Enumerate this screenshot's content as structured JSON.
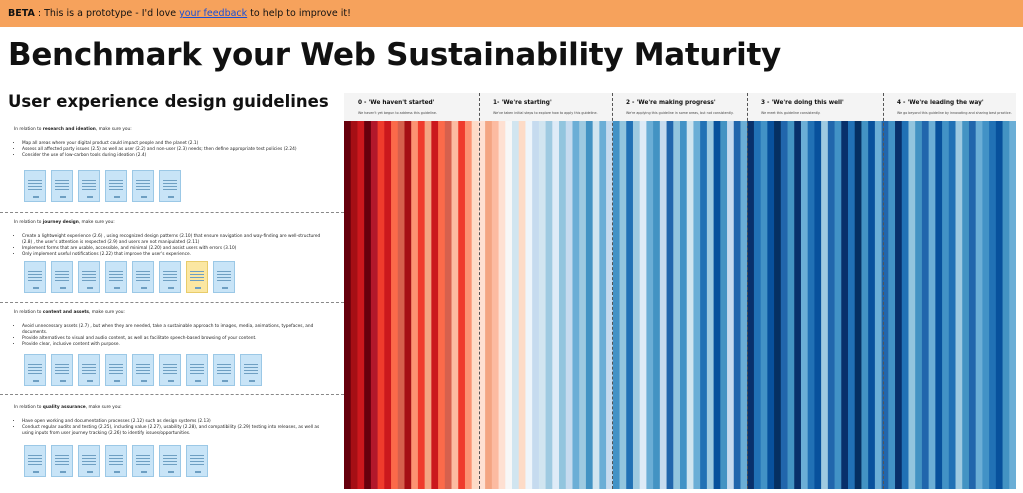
{
  "banner": {
    "beta_label": "BETA",
    "text_before": " : This is a prototype - I'd love ",
    "link_text": "your feedback",
    "text_after": " to help to improve it!"
  },
  "page_title": "Benchmark your Web Sustainability Maturity",
  "section_title": "User experience design guidelines",
  "levels": [
    {
      "label": "0 - 'We haven't started'",
      "desc": "We haven't yet begun to address this guideline."
    },
    {
      "label": "1- 'We're starting'",
      "desc": "We've taken initial steps to explore how to apply this guideline."
    },
    {
      "label": "2 - 'We're making progress'",
      "desc": "We're applying this guideline in some areas, but not consistently."
    },
    {
      "label": "3 - 'We're doing this well'",
      "desc": "We meet this guideline consistently."
    },
    {
      "label": "4 - 'We're leading the way'",
      "desc": "We go beyond this guideline by innovating and sharing best practice."
    }
  ],
  "sections": [
    {
      "intro_before": "In relation to ",
      "intro_bold": "research and ideation",
      "intro_after": ", make sure you:",
      "bullets": [
        "Map all areas where your digital product could impact people and the planet (2.1)",
        "Assess all affected party issues (2.5) as well as user (2.2) and non-user (2.3) needs; then define appropriate test policies (2.24)",
        "Consider the use of low-carbon tools during ideation (2.4)"
      ],
      "card_count": 6,
      "yellow_index": -1
    },
    {
      "intro_before": "In relation to ",
      "intro_bold": "journey design",
      "intro_after": ", make sure you:",
      "bullets": [
        "Create a lightweight experience (2.6) , using recognized design patterns (2.10) that ensure navigation and way-finding are well-structured (2.8) , the user's attention is respected (2.9) and users are not manipulated (2.11)",
        "Implement forms that are usable, accessible, and minimal (2.20) and assist users with errors (3.10)",
        "Only implement useful notifications (2.22) that improve the user's experience."
      ],
      "card_count": 8,
      "yellow_index": 6
    },
    {
      "intro_before": "In relation to ",
      "intro_bold": "content and assets",
      "intro_after": ", make sure you:",
      "bullets": [
        "Avoid unnecessary assets (2.7) , but when they are needed, take a sustainable approach to images, media, animations, typefaces, and documents.",
        "Provide alternatives to visual and audio content, as well as facilitate speech-based browsing of your content.",
        "Provide clear, inclusive content with purpose."
      ],
      "card_count": 9,
      "yellow_index": -1
    },
    {
      "intro_before": "In relation to ",
      "intro_bold": "quality assurance",
      "intro_after": ", make sure you:",
      "bullets": [
        "Have open working and documentation processes (2.12) such as design systems (2.13)",
        "Conduct regular audits and testing (2.25), including value (2.27), usability (2.28), and compatibility (2.29) testing into releases, as well as using inputs from user journey tracking (2.26) to identify issues/opportunities."
      ],
      "card_count": 7,
      "yellow_index": -1
    }
  ],
  "stripe_colors": [
    "#67000d",
    "#a50f15",
    "#cb181d",
    "#67000d",
    "#b2182b",
    "#ef3b2c",
    "#cb181d",
    "#fb6a4a",
    "#d6604d",
    "#a50f15",
    "#fc9272",
    "#ef3b2c",
    "#f4a582",
    "#cb181d",
    "#fb6a4a",
    "#d6604d",
    "#fcbba1",
    "#ef3b2c",
    "#fc9272",
    "#fddbc7",
    "#fee0d2",
    "#f4a582",
    "#fcbba1",
    "#fee0d2",
    "#f7f7f7",
    "#d1e5f0",
    "#fddbc7",
    "#eef5fb",
    "#c6dbef",
    "#d1e5f0",
    "#9ecae1",
    "#deebf7",
    "#92c5de",
    "#c6dbef",
    "#6baed6",
    "#9ecae1",
    "#4393c3",
    "#d1e5f0",
    "#6baed6",
    "#c6dbef",
    "#4292c6",
    "#92c5de",
    "#2171b5",
    "#9ecae1",
    "#deebf7",
    "#6baed6",
    "#4393c3",
    "#c6dbef",
    "#2166ac",
    "#92c5de",
    "#4292c6",
    "#d1e5f0",
    "#6baed6",
    "#2171b5",
    "#9ecae1",
    "#08519c",
    "#4393c3",
    "#c6dbef",
    "#2166ac",
    "#6baed6",
    "#08306b",
    "#2171b5",
    "#4292c6",
    "#08519c",
    "#053061",
    "#2166ac",
    "#4393c3",
    "#08306b",
    "#6baed6",
    "#2171b5",
    "#08519c",
    "#9ecae1",
    "#2166ac",
    "#4292c6",
    "#08306b",
    "#2171b5",
    "#053061",
    "#4393c3",
    "#08519c",
    "#6baed6",
    "#2166ac",
    "#4292c6",
    "#08306b",
    "#2171b5",
    "#92c5de",
    "#4393c3",
    "#2166ac",
    "#6baed6",
    "#08519c",
    "#4292c6",
    "#2171b5",
    "#9ecae1",
    "#4393c3",
    "#2166ac",
    "#6baed6",
    "#4292c6",
    "#2171b5",
    "#08519c",
    "#4393c3",
    "#6baed6"
  ]
}
